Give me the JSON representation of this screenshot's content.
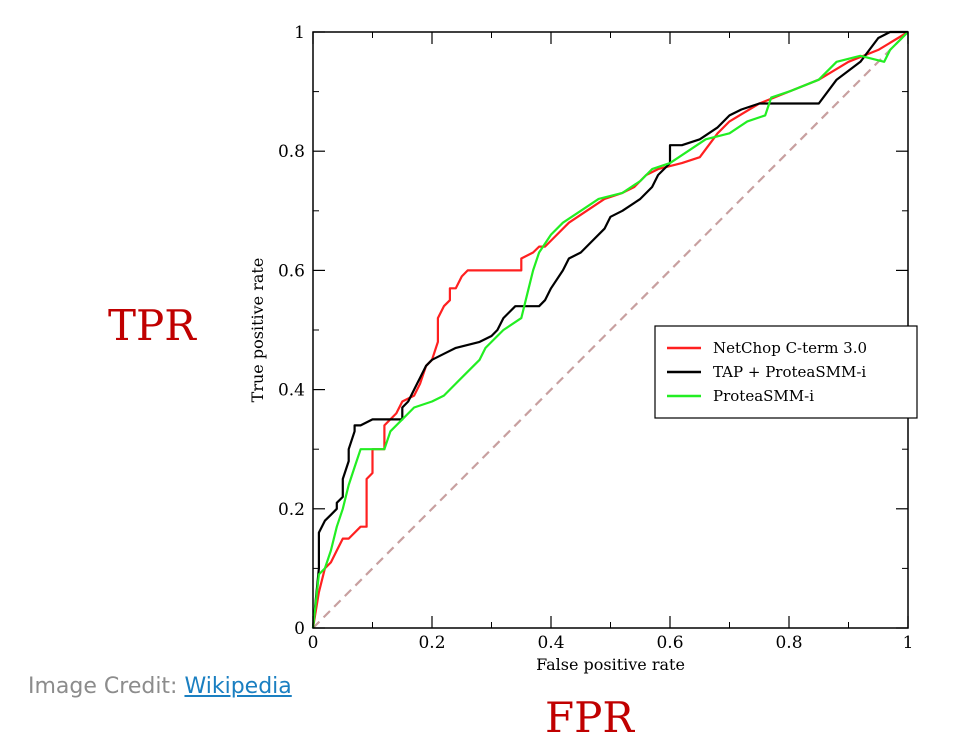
{
  "annotations": {
    "tpr": "TPR",
    "fpr": "FPR",
    "tpr_color": "#c00000",
    "fpr_color": "#c00000"
  },
  "credit": {
    "prefix": "Image Credit: ",
    "link_text": "Wikipedia"
  },
  "chart_data": {
    "type": "line",
    "title": "",
    "xlabel": "False positive rate",
    "ylabel": "True positive rate",
    "xlim": [
      0,
      1
    ],
    "ylim": [
      0,
      1
    ],
    "xticks": [
      0,
      0.2,
      0.4,
      0.6,
      0.8,
      1
    ],
    "yticks": [
      0,
      0.2,
      0.4,
      0.6,
      0.8,
      1
    ],
    "xtick_labels": [
      "0",
      "0.2",
      "0.4",
      "0.6",
      "0.8",
      "1"
    ],
    "ytick_labels": [
      "0",
      "0.2",
      "0.4",
      "0.6",
      "0.8",
      "1"
    ],
    "grid": false,
    "legend_position": "center-right",
    "diagonal": {
      "color": "#c8a0a0",
      "style": "dashed",
      "points": [
        [
          0,
          0
        ],
        [
          1,
          1
        ]
      ]
    },
    "series": [
      {
        "name": "NetChop C-term 3.0",
        "color": "#ff2020",
        "points": [
          [
            0,
            0
          ],
          [
            0.01,
            0.06
          ],
          [
            0.02,
            0.1
          ],
          [
            0.03,
            0.11
          ],
          [
            0.04,
            0.13
          ],
          [
            0.05,
            0.15
          ],
          [
            0.06,
            0.15
          ],
          [
            0.08,
            0.17
          ],
          [
            0.09,
            0.17
          ],
          [
            0.09,
            0.25
          ],
          [
            0.1,
            0.26
          ],
          [
            0.1,
            0.3
          ],
          [
            0.12,
            0.3
          ],
          [
            0.12,
            0.34
          ],
          [
            0.14,
            0.36
          ],
          [
            0.15,
            0.38
          ],
          [
            0.17,
            0.39
          ],
          [
            0.18,
            0.41
          ],
          [
            0.19,
            0.44
          ],
          [
            0.2,
            0.45
          ],
          [
            0.21,
            0.48
          ],
          [
            0.21,
            0.52
          ],
          [
            0.22,
            0.54
          ],
          [
            0.23,
            0.55
          ],
          [
            0.23,
            0.57
          ],
          [
            0.24,
            0.57
          ],
          [
            0.25,
            0.59
          ],
          [
            0.26,
            0.6
          ],
          [
            0.3,
            0.6
          ],
          [
            0.35,
            0.6
          ],
          [
            0.35,
            0.62
          ],
          [
            0.37,
            0.63
          ],
          [
            0.38,
            0.64
          ],
          [
            0.39,
            0.64
          ],
          [
            0.4,
            0.65
          ],
          [
            0.41,
            0.66
          ],
          [
            0.43,
            0.68
          ],
          [
            0.46,
            0.7
          ],
          [
            0.49,
            0.72
          ],
          [
            0.52,
            0.73
          ],
          [
            0.54,
            0.74
          ],
          [
            0.56,
            0.76
          ],
          [
            0.58,
            0.77
          ],
          [
            0.62,
            0.78
          ],
          [
            0.65,
            0.79
          ],
          [
            0.68,
            0.83
          ],
          [
            0.7,
            0.85
          ],
          [
            0.75,
            0.88
          ],
          [
            0.8,
            0.9
          ],
          [
            0.85,
            0.92
          ],
          [
            0.9,
            0.95
          ],
          [
            0.95,
            0.97
          ],
          [
            1,
            1
          ]
        ]
      },
      {
        "name": "TAP + ProteaSMM-i",
        "color": "#000000",
        "points": [
          [
            0,
            0
          ],
          [
            0.01,
            0.1
          ],
          [
            0.01,
            0.16
          ],
          [
            0.02,
            0.18
          ],
          [
            0.03,
            0.19
          ],
          [
            0.04,
            0.2
          ],
          [
            0.04,
            0.21
          ],
          [
            0.05,
            0.22
          ],
          [
            0.05,
            0.25
          ],
          [
            0.06,
            0.28
          ],
          [
            0.06,
            0.3
          ],
          [
            0.07,
            0.33
          ],
          [
            0.07,
            0.34
          ],
          [
            0.08,
            0.34
          ],
          [
            0.1,
            0.35
          ],
          [
            0.15,
            0.35
          ],
          [
            0.15,
            0.37
          ],
          [
            0.16,
            0.38
          ],
          [
            0.17,
            0.4
          ],
          [
            0.18,
            0.42
          ],
          [
            0.19,
            0.44
          ],
          [
            0.2,
            0.45
          ],
          [
            0.22,
            0.46
          ],
          [
            0.24,
            0.47
          ],
          [
            0.28,
            0.48
          ],
          [
            0.3,
            0.49
          ],
          [
            0.31,
            0.5
          ],
          [
            0.32,
            0.52
          ],
          [
            0.34,
            0.54
          ],
          [
            0.38,
            0.54
          ],
          [
            0.39,
            0.55
          ],
          [
            0.4,
            0.57
          ],
          [
            0.42,
            0.6
          ],
          [
            0.43,
            0.62
          ],
          [
            0.45,
            0.63
          ],
          [
            0.47,
            0.65
          ],
          [
            0.49,
            0.67
          ],
          [
            0.5,
            0.69
          ],
          [
            0.52,
            0.7
          ],
          [
            0.55,
            0.72
          ],
          [
            0.57,
            0.74
          ],
          [
            0.58,
            0.76
          ],
          [
            0.6,
            0.78
          ],
          [
            0.6,
            0.81
          ],
          [
            0.62,
            0.81
          ],
          [
            0.65,
            0.82
          ],
          [
            0.68,
            0.84
          ],
          [
            0.7,
            0.86
          ],
          [
            0.72,
            0.87
          ],
          [
            0.75,
            0.88
          ],
          [
            0.85,
            0.88
          ],
          [
            0.88,
            0.92
          ],
          [
            0.92,
            0.95
          ],
          [
            0.95,
            0.99
          ],
          [
            0.97,
            1
          ],
          [
            1,
            1
          ]
        ]
      },
      {
        "name": "ProteaSMM-i",
        "color": "#22ee22",
        "points": [
          [
            0,
            0
          ],
          [
            0.01,
            0.09
          ],
          [
            0.02,
            0.1
          ],
          [
            0.03,
            0.13
          ],
          [
            0.04,
            0.17
          ],
          [
            0.05,
            0.2
          ],
          [
            0.06,
            0.24
          ],
          [
            0.07,
            0.27
          ],
          [
            0.08,
            0.3
          ],
          [
            0.12,
            0.3
          ],
          [
            0.13,
            0.33
          ],
          [
            0.15,
            0.35
          ],
          [
            0.17,
            0.37
          ],
          [
            0.2,
            0.38
          ],
          [
            0.22,
            0.39
          ],
          [
            0.24,
            0.41
          ],
          [
            0.26,
            0.43
          ],
          [
            0.28,
            0.45
          ],
          [
            0.29,
            0.47
          ],
          [
            0.3,
            0.48
          ],
          [
            0.32,
            0.5
          ],
          [
            0.35,
            0.52
          ],
          [
            0.36,
            0.56
          ],
          [
            0.37,
            0.6
          ],
          [
            0.38,
            0.63
          ],
          [
            0.4,
            0.66
          ],
          [
            0.42,
            0.68
          ],
          [
            0.45,
            0.7
          ],
          [
            0.48,
            0.72
          ],
          [
            0.52,
            0.73
          ],
          [
            0.55,
            0.75
          ],
          [
            0.57,
            0.77
          ],
          [
            0.6,
            0.78
          ],
          [
            0.63,
            0.8
          ],
          [
            0.66,
            0.82
          ],
          [
            0.7,
            0.83
          ],
          [
            0.73,
            0.85
          ],
          [
            0.76,
            0.86
          ],
          [
            0.77,
            0.89
          ],
          [
            0.8,
            0.9
          ],
          [
            0.85,
            0.92
          ],
          [
            0.88,
            0.95
          ],
          [
            0.92,
            0.96
          ],
          [
            0.96,
            0.95
          ],
          [
            0.97,
            0.97
          ],
          [
            1,
            1
          ]
        ]
      }
    ]
  }
}
